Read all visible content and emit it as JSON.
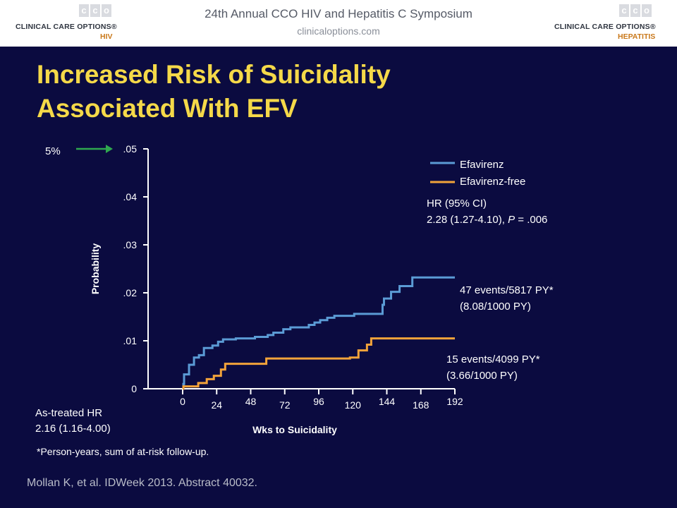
{
  "header": {
    "title": "24th Annual CCO HIV and Hepatitis C Symposium",
    "url": "clinicaloptions.com",
    "logo_left": {
      "mark": [
        "c",
        "c",
        "o"
      ],
      "name": "CLINICAL CARE OPTIONS®",
      "sub": "HIV"
    },
    "logo_right": {
      "mark": [
        "c",
        "c",
        "o"
      ],
      "name": "CLINICAL CARE OPTIONS®",
      "sub": "HEPATITIS"
    }
  },
  "slide_title": "Increased Risk of Suicidality Associated With EFV",
  "callout": {
    "label": "5%"
  },
  "hr_box": {
    "line1": "HR (95% CI)",
    "line2_prefix": "2.28 (1.27-4.10), ",
    "line2_p": "P",
    "line2_suffix": " = .006"
  },
  "efv_events": {
    "line1": "47 events/5817 PY*",
    "line2": "(8.08/1000 PY)"
  },
  "free_events": {
    "line1": "15 events/4099 PY*",
    "line2": "(3.66/1000 PY)"
  },
  "as_treated": {
    "line1": "As-treated HR",
    "line2": "2.16 (1.16-4.00)"
  },
  "footnote": "*Person-years, sum of at-risk follow-up.",
  "citation": "Mollan K, et al. IDWeek 2013. Abstract 40032.",
  "colors": {
    "background": "#0b0b40",
    "title": "#f5d949",
    "efavirenz": "#5b9bd5",
    "efavirenz_free": "#f2a33a",
    "arrow": "#2fa84f"
  },
  "chart_data": {
    "type": "line",
    "title": "",
    "xlabel": "Wks to Suicidality",
    "ylabel": "Probability",
    "xlim": [
      0,
      192
    ],
    "ylim": [
      0,
      0.05
    ],
    "xticks": [
      0,
      24,
      48,
      72,
      96,
      120,
      144,
      168,
      192
    ],
    "xtick_labels": [
      "0",
      "24",
      "48",
      "72",
      "96",
      "120",
      "144",
      "168",
      "192"
    ],
    "yticks": [
      0,
      0.01,
      0.02,
      0.03,
      0.04,
      0.05
    ],
    "ytick_labels": [
      "0",
      ".01",
      ".02",
      ".03",
      ".04",
      ".05"
    ],
    "legend_position": "top-right",
    "series": [
      {
        "name": "Efavirenz",
        "step": true,
        "points": [
          [
            0,
            0.0
          ],
          [
            0.5,
            0.001
          ],
          [
            1,
            0.003
          ],
          [
            4,
            0.003
          ],
          [
            4.5,
            0.005
          ],
          [
            7,
            0.005
          ],
          [
            8,
            0.0065
          ],
          [
            11,
            0.0065
          ],
          [
            11.5,
            0.007
          ],
          [
            14,
            0.007
          ],
          [
            15,
            0.0085
          ],
          [
            20,
            0.0085
          ],
          [
            21,
            0.009
          ],
          [
            24,
            0.009
          ],
          [
            25,
            0.0098
          ],
          [
            28,
            0.0098
          ],
          [
            28.5,
            0.0103
          ],
          [
            37,
            0.0103
          ],
          [
            37.5,
            0.0105
          ],
          [
            50,
            0.0105
          ],
          [
            51,
            0.0108
          ],
          [
            59,
            0.0108
          ],
          [
            60,
            0.0112
          ],
          [
            63,
            0.0112
          ],
          [
            64,
            0.0117
          ],
          [
            70,
            0.0117
          ],
          [
            71,
            0.0124
          ],
          [
            75,
            0.0124
          ],
          [
            76,
            0.0128
          ],
          [
            88,
            0.0128
          ],
          [
            89,
            0.0133
          ],
          [
            92,
            0.0133
          ],
          [
            93,
            0.0138
          ],
          [
            96,
            0.0138
          ],
          [
            97,
            0.0143
          ],
          [
            101,
            0.0143
          ],
          [
            102,
            0.0148
          ],
          [
            106,
            0.0148
          ],
          [
            107,
            0.0152
          ],
          [
            120,
            0.0152
          ],
          [
            121,
            0.0156
          ],
          [
            140,
            0.0156
          ],
          [
            141,
            0.0175
          ],
          [
            142,
            0.0188
          ],
          [
            146,
            0.0188
          ],
          [
            147,
            0.0202
          ],
          [
            152,
            0.0202
          ],
          [
            153,
            0.0214
          ],
          [
            161,
            0.0214
          ],
          [
            162,
            0.0232
          ],
          [
            192,
            0.0232
          ]
        ]
      },
      {
        "name": "Efavirenz-free",
        "step": true,
        "points": [
          [
            0,
            0.0
          ],
          [
            0.5,
            0.0005
          ],
          [
            10,
            0.0005
          ],
          [
            11,
            0.0012
          ],
          [
            16,
            0.0012
          ],
          [
            17,
            0.002
          ],
          [
            21,
            0.002
          ],
          [
            22,
            0.0027
          ],
          [
            26,
            0.0027
          ],
          [
            27,
            0.004
          ],
          [
            29,
            0.004
          ],
          [
            30,
            0.0052
          ],
          [
            58,
            0.0052
          ],
          [
            59,
            0.0063
          ],
          [
            117,
            0.0063
          ],
          [
            118,
            0.0065
          ],
          [
            123,
            0.0065
          ],
          [
            124,
            0.008
          ],
          [
            129,
            0.008
          ],
          [
            130,
            0.0092
          ],
          [
            132,
            0.0092
          ],
          [
            133,
            0.0105
          ],
          [
            192,
            0.0105
          ]
        ]
      }
    ]
  }
}
